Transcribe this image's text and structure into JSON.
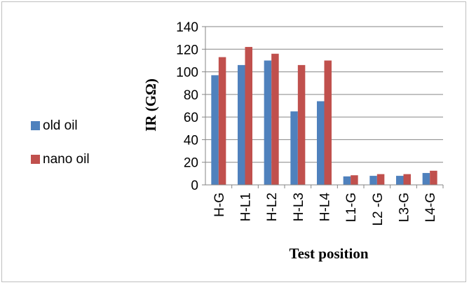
{
  "chart_data": {
    "type": "bar",
    "categories": [
      "H-G",
      "H-L1",
      "H-L2",
      "H-L3",
      "H-L4",
      "L1-G",
      "L2 -G",
      "L3-G",
      "L4-G"
    ],
    "series": [
      {
        "name": "old oil",
        "values": [
          97,
          106,
          110,
          65,
          74,
          7.5,
          8,
          8,
          10.5
        ],
        "color": "#4f81bd"
      },
      {
        "name": "nano oil",
        "values": [
          113,
          122,
          116,
          106,
          110,
          8.5,
          9.5,
          9.5,
          12.5
        ],
        "color": "#c0504d"
      }
    ],
    "xlabel": "Test position",
    "ylabel": "IR (GΩ)",
    "ylim": [
      0,
      140
    ],
    "yticks": [
      0,
      20,
      40,
      60,
      80,
      100,
      120,
      140
    ],
    "grid": true,
    "legend_position": "left"
  }
}
